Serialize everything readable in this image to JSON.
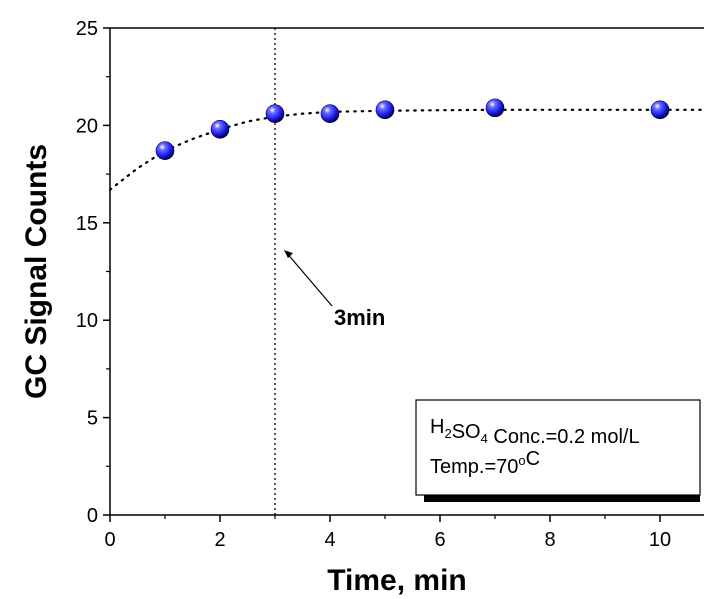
{
  "chart_data": {
    "type": "scatter",
    "xlabel": "Time, min",
    "ylabel": "GC Signal Counts",
    "xlim": [
      0,
      10.8
    ],
    "ylim": [
      0,
      25
    ],
    "xticks": [
      "0",
      "2",
      "4",
      "6",
      "8",
      "10"
    ],
    "yticks": [
      "0",
      "5",
      "10",
      "15",
      "20",
      "25"
    ],
    "series": [
      {
        "marker": "blue-sphere",
        "color": "#1a1ae6",
        "points": [
          {
            "x": 1,
            "y": 18.7
          },
          {
            "x": 2,
            "y": 19.8
          },
          {
            "x": 3,
            "y": 20.6
          },
          {
            "x": 4,
            "y": 20.6
          },
          {
            "x": 5,
            "y": 20.8
          },
          {
            "x": 7,
            "y": 20.9
          },
          {
            "x": 10,
            "y": 20.8
          }
        ]
      }
    ],
    "fit_curve": {
      "style": "dotted",
      "points": [
        {
          "x": 0,
          "y": 16.7
        },
        {
          "x": 0.5,
          "y": 17.8
        },
        {
          "x": 1,
          "y": 18.7
        },
        {
          "x": 1.5,
          "y": 19.3
        },
        {
          "x": 2,
          "y": 19.8
        },
        {
          "x": 2.5,
          "y": 20.2
        },
        {
          "x": 3,
          "y": 20.45
        },
        {
          "x": 3.5,
          "y": 20.6
        },
        {
          "x": 4,
          "y": 20.7
        },
        {
          "x": 5,
          "y": 20.75
        },
        {
          "x": 6,
          "y": 20.78
        },
        {
          "x": 7,
          "y": 20.8
        },
        {
          "x": 8,
          "y": 20.8
        },
        {
          "x": 9,
          "y": 20.8
        },
        {
          "x": 10,
          "y": 20.8
        },
        {
          "x": 10.8,
          "y": 20.8
        }
      ]
    },
    "vline": {
      "x": 3,
      "style": "dotted"
    },
    "annotation": {
      "text": "3min",
      "arrow_to": {
        "x": 3,
        "y": 13.6
      }
    },
    "legend": {
      "lines": [
        {
          "parts": [
            {
              "t": "H"
            },
            {
              "t": "2",
              "sub": true
            },
            {
              "t": "SO"
            },
            {
              "t": "4",
              "sub": true
            },
            {
              "t": " Conc.=0.2 mol/L"
            }
          ]
        },
        {
          "parts": [
            {
              "t": "Temp.=70"
            },
            {
              "t": "o",
              "sup": true
            },
            {
              "t": "C"
            }
          ]
        }
      ],
      "placement": "bottom-right"
    }
  }
}
